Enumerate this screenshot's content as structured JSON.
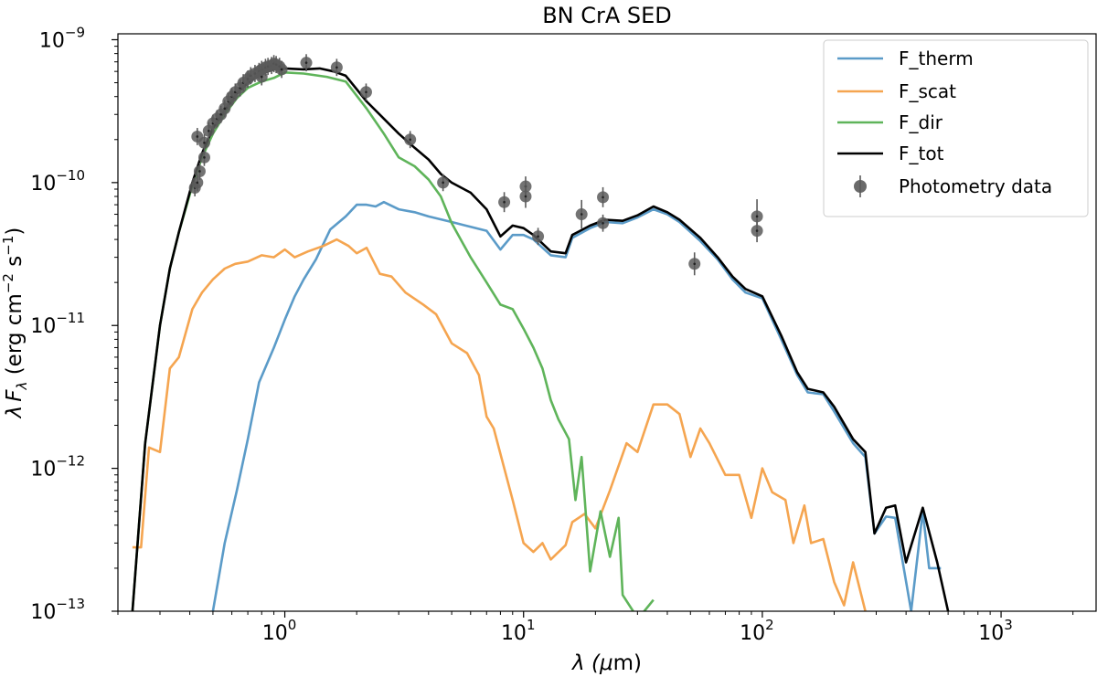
{
  "chart_data": {
    "type": "line",
    "title": "BN CrA SED",
    "xlabel": {
      "prefix": "λ (",
      "mu": "μ",
      "suffix": "m)"
    },
    "ylabel": {
      "lambda": "λ",
      "F": "F",
      "sub": "λ",
      "open": " (erg cm",
      "exp1": "−2",
      "mid": " s",
      "exp2": "−1",
      "close": ")"
    },
    "xscale": "log",
    "yscale": "log",
    "xlim": [
      0.2,
      2500
    ],
    "ylim": [
      1e-13,
      1.1e-09
    ],
    "x_ticks": [
      {
        "value": 1,
        "base": "10",
        "exp": "0"
      },
      {
        "value": 10,
        "base": "10",
        "exp": "1"
      },
      {
        "value": 100,
        "base": "10",
        "exp": "2"
      },
      {
        "value": 1000,
        "base": "10",
        "exp": "3"
      }
    ],
    "y_ticks": [
      {
        "value": 1e-13,
        "base": "10",
        "exp": "−13"
      },
      {
        "value": 1e-12,
        "base": "10",
        "exp": "−12"
      },
      {
        "value": 1e-11,
        "base": "10",
        "exp": "−11"
      },
      {
        "value": 1e-10,
        "base": "10",
        "exp": "−10"
      },
      {
        "value": 1e-09,
        "base": "10",
        "exp": "−9"
      }
    ],
    "legend_position": "top-right",
    "series": [
      {
        "name": "F_therm",
        "color": "#5b9bc8",
        "points": [
          [
            0.5,
            1e-13
          ],
          [
            0.56,
            3e-13
          ],
          [
            0.63,
            7e-13
          ],
          [
            0.7,
            1.6e-12
          ],
          [
            0.78,
            4e-12
          ],
          [
            0.9,
            7e-12
          ],
          [
            1.0,
            1.1e-11
          ],
          [
            1.1,
            1.6e-11
          ],
          [
            1.2,
            2.1e-11
          ],
          [
            1.35,
            2.9e-11
          ],
          [
            1.55,
            4.7e-11
          ],
          [
            1.8,
            5.8e-11
          ],
          [
            2.0,
            7e-11
          ],
          [
            2.2,
            7e-11
          ],
          [
            2.4,
            6.8e-11
          ],
          [
            2.6,
            7.3e-11
          ],
          [
            3.0,
            6.5e-11
          ],
          [
            3.5,
            6.2e-11
          ],
          [
            4.0,
            5.8e-11
          ],
          [
            5.0,
            5.3e-11
          ],
          [
            6.0,
            4.9e-11
          ],
          [
            7.0,
            4.6e-11
          ],
          [
            8.0,
            3.4e-11
          ],
          [
            9.0,
            4.3e-11
          ],
          [
            10.0,
            4.3e-11
          ],
          [
            11.0,
            4e-11
          ],
          [
            13.0,
            3.1e-11
          ],
          [
            15.0,
            3e-11
          ],
          [
            16.0,
            4.1e-11
          ],
          [
            19.0,
            4.8e-11
          ],
          [
            22.0,
            5.3e-11
          ],
          [
            26.0,
            5.2e-11
          ],
          [
            30.0,
            5.7e-11
          ],
          [
            35.0,
            6.5e-11
          ],
          [
            40.0,
            6e-11
          ],
          [
            45.0,
            5.3e-11
          ],
          [
            55.0,
            3.9e-11
          ],
          [
            65.0,
            2.9e-11
          ],
          [
            75.0,
            2.1e-11
          ],
          [
            85.0,
            1.7e-11
          ],
          [
            100.0,
            1.55e-11
          ],
          [
            120.0,
            8e-12
          ],
          [
            140.0,
            4.5e-12
          ],
          [
            155.0,
            3.4e-12
          ],
          [
            180.0,
            3.3e-12
          ],
          [
            200.0,
            2.5e-12
          ],
          [
            240.0,
            1.5e-12
          ],
          [
            270.0,
            1.2e-12
          ],
          [
            295.0,
            3.5e-13
          ],
          [
            330.0,
            4.6e-13
          ],
          [
            360.0,
            4.5e-13
          ],
          [
            420.0,
            1e-13
          ],
          [
            470.0,
            5e-13
          ],
          [
            500.0,
            2e-13
          ],
          [
            560.0,
            2e-13
          ]
        ]
      },
      {
        "name": "F_scat",
        "color": "#f5a550",
        "points": [
          [
            0.23,
            2.8e-13
          ],
          [
            0.25,
            2.8e-13
          ],
          [
            0.27,
            1.4e-12
          ],
          [
            0.3,
            1.3e-12
          ],
          [
            0.33,
            5e-12
          ],
          [
            0.36,
            6e-12
          ],
          [
            0.41,
            1.3e-11
          ],
          [
            0.45,
            1.7e-11
          ],
          [
            0.5,
            2.1e-11
          ],
          [
            0.56,
            2.5e-11
          ],
          [
            0.62,
            2.7e-11
          ],
          [
            0.7,
            2.8e-11
          ],
          [
            0.8,
            3.1e-11
          ],
          [
            0.9,
            3e-11
          ],
          [
            1.0,
            3.4e-11
          ],
          [
            1.1,
            3e-11
          ],
          [
            1.25,
            3.3e-11
          ],
          [
            1.45,
            3.6e-11
          ],
          [
            1.65,
            4e-11
          ],
          [
            1.85,
            3.6e-11
          ],
          [
            2.0,
            3.2e-11
          ],
          [
            2.2,
            3.5e-11
          ],
          [
            2.5,
            2.3e-11
          ],
          [
            2.8,
            2.2e-11
          ],
          [
            3.2,
            1.7e-11
          ],
          [
            3.8,
            1.4e-11
          ],
          [
            4.3,
            1.2e-11
          ],
          [
            5.0,
            7.5e-12
          ],
          [
            5.8,
            6.4e-12
          ],
          [
            6.5,
            4.5e-12
          ],
          [
            7.0,
            2.3e-12
          ],
          [
            7.5,
            1.9e-12
          ],
          [
            8.3,
            1e-12
          ],
          [
            9.0,
            6e-13
          ],
          [
            10.0,
            3e-13
          ],
          [
            11.0,
            2.6e-13
          ],
          [
            12.0,
            3e-13
          ],
          [
            13.0,
            2.3e-13
          ],
          [
            15.0,
            2.9e-13
          ],
          [
            16.0,
            4.2e-13
          ],
          [
            18.0,
            4.8e-13
          ],
          [
            20.0,
            3.8e-13
          ],
          [
            23.0,
            7e-13
          ],
          [
            27.0,
            1.5e-12
          ],
          [
            30.0,
            1.3e-12
          ],
          [
            35.0,
            2.8e-12
          ],
          [
            40.0,
            2.8e-12
          ],
          [
            45.0,
            2.4e-12
          ],
          [
            50.0,
            1.2e-12
          ],
          [
            55.0,
            1.9e-12
          ],
          [
            60.0,
            1.5e-12
          ],
          [
            70.0,
            9e-13
          ],
          [
            80.0,
            9e-13
          ],
          [
            90.0,
            4.5e-13
          ],
          [
            100.0,
            1e-12
          ],
          [
            110.0,
            6.8e-13
          ],
          [
            125.0,
            6e-13
          ],
          [
            135.0,
            3e-13
          ],
          [
            150.0,
            5.5e-13
          ],
          [
            160.0,
            3e-13
          ],
          [
            180.0,
            3.2e-13
          ],
          [
            200.0,
            1.6e-13
          ],
          [
            220.0,
            1.1e-13
          ],
          [
            240.0,
            2.2e-13
          ],
          [
            270.0,
            1e-13
          ]
        ]
      },
      {
        "name": "F_dir",
        "color": "#5fb45a",
        "points": [
          [
            0.23,
            1e-13
          ],
          [
            0.26,
            1.5e-12
          ],
          [
            0.3,
            1e-11
          ],
          [
            0.33,
            2.5e-11
          ],
          [
            0.36,
            4.5e-11
          ],
          [
            0.41,
            9.5e-11
          ],
          [
            0.45,
            1.5e-10
          ],
          [
            0.5,
            2.2e-10
          ],
          [
            0.56,
            3e-10
          ],
          [
            0.63,
            3.9e-10
          ],
          [
            0.7,
            4.6e-10
          ],
          [
            0.8,
            5.1e-10
          ],
          [
            0.9,
            5.4e-10
          ],
          [
            1.0,
            5.9e-10
          ],
          [
            1.2,
            5.8e-10
          ],
          [
            1.5,
            5.5e-10
          ],
          [
            1.8,
            5.1e-10
          ],
          [
            2.2,
            3.3e-10
          ],
          [
            2.6,
            2.2e-10
          ],
          [
            3.0,
            1.5e-10
          ],
          [
            3.5,
            1.3e-10
          ],
          [
            4.0,
            1.05e-10
          ],
          [
            4.5,
            8e-11
          ],
          [
            5.0,
            5.2e-11
          ],
          [
            6.0,
            3e-11
          ],
          [
            7.0,
            2e-11
          ],
          [
            8.0,
            1.4e-11
          ],
          [
            9.0,
            1.3e-11
          ],
          [
            10.0,
            9.5e-12
          ],
          [
            11.0,
            7e-12
          ],
          [
            12.0,
            5e-12
          ],
          [
            13.0,
            3e-12
          ],
          [
            14.0,
            2.2e-12
          ],
          [
            15.5,
            1.6e-12
          ],
          [
            16.5,
            6e-13
          ],
          [
            17.5,
            1.2e-12
          ],
          [
            19.0,
            1.9e-13
          ],
          [
            21.0,
            5e-13
          ],
          [
            23.0,
            2.4e-13
          ],
          [
            25.0,
            4.5e-13
          ],
          [
            26.0,
            1.3e-13
          ],
          [
            30.0,
            9e-14
          ],
          [
            32.0,
            1e-13
          ],
          [
            35.0,
            1.2e-13
          ]
        ]
      },
      {
        "name": "F_tot",
        "color": "#000000",
        "points": [
          [
            0.23,
            1e-13
          ],
          [
            0.26,
            1.5e-12
          ],
          [
            0.3,
            1e-11
          ],
          [
            0.33,
            2.5e-11
          ],
          [
            0.36,
            4.5e-11
          ],
          [
            0.41,
            1e-10
          ],
          [
            0.45,
            1.6e-10
          ],
          [
            0.5,
            2.4e-10
          ],
          [
            0.56,
            3.2e-10
          ],
          [
            0.63,
            4.2e-10
          ],
          [
            0.7,
            5e-10
          ],
          [
            0.8,
            5.8e-10
          ],
          [
            0.9,
            6.2e-10
          ],
          [
            1.0,
            6.3e-10
          ],
          [
            1.2,
            6.2e-10
          ],
          [
            1.4,
            6.3e-10
          ],
          [
            1.6,
            6e-10
          ],
          [
            1.8,
            5.6e-10
          ],
          [
            2.2,
            3.7e-10
          ],
          [
            2.6,
            2.8e-10
          ],
          [
            3.0,
            2.2e-10
          ],
          [
            3.5,
            1.75e-10
          ],
          [
            4.0,
            1.45e-10
          ],
          [
            4.5,
            1.15e-10
          ],
          [
            5.0,
            1e-10
          ],
          [
            6.0,
            8.5e-11
          ],
          [
            7.0,
            6.5e-11
          ],
          [
            8.0,
            4.2e-11
          ],
          [
            9.0,
            5e-11
          ],
          [
            10.0,
            4.8e-11
          ],
          [
            11.0,
            4.3e-11
          ],
          [
            13.0,
            3.3e-11
          ],
          [
            15.0,
            3.2e-11
          ],
          [
            16.0,
            4.3e-11
          ],
          [
            19.0,
            5e-11
          ],
          [
            22.0,
            5.5e-11
          ],
          [
            26.0,
            5.4e-11
          ],
          [
            30.0,
            5.9e-11
          ],
          [
            35.0,
            6.8e-11
          ],
          [
            40.0,
            6.2e-11
          ],
          [
            45.0,
            5.5e-11
          ],
          [
            55.0,
            4.1e-11
          ],
          [
            65.0,
            3e-11
          ],
          [
            75.0,
            2.2e-11
          ],
          [
            85.0,
            1.8e-11
          ],
          [
            100.0,
            1.6e-11
          ],
          [
            120.0,
            8.5e-12
          ],
          [
            140.0,
            4.7e-12
          ],
          [
            155.0,
            3.6e-12
          ],
          [
            180.0,
            3.4e-12
          ],
          [
            200.0,
            2.7e-12
          ],
          [
            240.0,
            1.6e-12
          ],
          [
            270.0,
            1.3e-12
          ],
          [
            295.0,
            3.5e-13
          ],
          [
            330.0,
            5.3e-13
          ],
          [
            360.0,
            5.5e-13
          ],
          [
            400.0,
            2.2e-13
          ],
          [
            470.0,
            5.3e-13
          ],
          [
            540.0,
            2.2e-13
          ],
          [
            600.0,
            1e-13
          ]
        ]
      }
    ],
    "photometry": {
      "name": "Photometry data",
      "color": "#5a5a5a",
      "points": [
        [
          0.42,
          9.2e-11,
          0.06
        ],
        [
          0.43,
          1e-10,
          0.06
        ],
        [
          0.44,
          1.2e-10,
          0.06
        ],
        [
          0.43,
          2.1e-10,
          0.06
        ],
        [
          0.46,
          1.9e-10,
          0.06
        ],
        [
          0.46,
          1.5e-10,
          0.06
        ],
        [
          0.48,
          2.3e-10,
          0.06
        ],
        [
          0.5,
          2.6e-10,
          0.06
        ],
        [
          0.52,
          2.8e-10,
          0.06
        ],
        [
          0.54,
          3e-10,
          0.06
        ],
        [
          0.56,
          3.3e-10,
          0.06
        ],
        [
          0.58,
          3.7e-10,
          0.06
        ],
        [
          0.6,
          4e-10,
          0.06
        ],
        [
          0.62,
          4.3e-10,
          0.06
        ],
        [
          0.65,
          4.6e-10,
          0.06
        ],
        [
          0.67,
          5e-10,
          0.06
        ],
        [
          0.7,
          5.3e-10,
          0.06
        ],
        [
          0.72,
          5.6e-10,
          0.06
        ],
        [
          0.75,
          5.8e-10,
          0.06
        ],
        [
          0.78,
          6e-10,
          0.06
        ],
        [
          0.8,
          6.2e-10,
          0.06
        ],
        [
          0.83,
          6.4e-10,
          0.06
        ],
        [
          0.85,
          6.5e-10,
          0.06
        ],
        [
          0.88,
          6.6e-10,
          0.06
        ],
        [
          0.9,
          6.8e-10,
          0.06
        ],
        [
          0.92,
          6.7e-10,
          0.06
        ],
        [
          0.95,
          6.5e-10,
          0.06
        ],
        [
          0.97,
          6.2e-10,
          0.06
        ],
        [
          0.8,
          5.5e-10,
          0.06
        ],
        [
          1.23,
          6.9e-10,
          0.06
        ],
        [
          1.65,
          6.4e-10,
          0.06
        ],
        [
          2.19,
          4.3e-10,
          0.06
        ],
        [
          3.35,
          2e-10,
          0.06
        ],
        [
          4.6,
          1e-10,
          0.06
        ],
        [
          8.3,
          7.3e-11,
          0.07
        ],
        [
          10.2,
          9.4e-11,
          0.07
        ],
        [
          10.2,
          8e-11,
          0.08
        ],
        [
          11.5,
          4.2e-11,
          0.06
        ],
        [
          17.5,
          6e-11,
          0.1
        ],
        [
          21.5,
          7.9e-11,
          0.07
        ],
        [
          21.5,
          5.2e-11,
          0.06
        ],
        [
          52.0,
          2.7e-11,
          0.08
        ],
        [
          95.0,
          5.8e-11,
          0.12
        ],
        [
          95.0,
          4.6e-11,
          0.08
        ]
      ]
    }
  }
}
